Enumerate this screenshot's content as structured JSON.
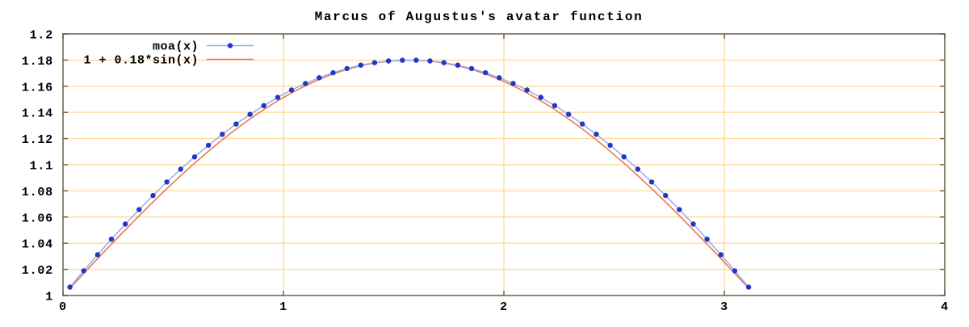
{
  "chart_data": {
    "type": "line",
    "title": "Marcus of Augustus's avatar function",
    "xlabel": "",
    "ylabel": "",
    "xlim": [
      0,
      4
    ],
    "ylim": [
      1,
      1.2
    ],
    "x_ticks": [
      0,
      1,
      2,
      3,
      4
    ],
    "x_tick_labels": [
      "0",
      "1",
      "2",
      "3",
      "4"
    ],
    "y_ticks": [
      1,
      1.02,
      1.04,
      1.06,
      1.08,
      1.1,
      1.12,
      1.14,
      1.16,
      1.18,
      1.2
    ],
    "y_tick_labels": [
      "1",
      "1.02",
      "1.04",
      "1.06",
      "1.08",
      "1.1",
      "1.12",
      "1.14",
      "1.16",
      "1.18",
      "1.2"
    ],
    "grid": true,
    "legend_position": "top-left",
    "x": [
      0.0314,
      0.0942,
      0.1571,
      0.2199,
      0.2827,
      0.3456,
      0.4084,
      0.4712,
      0.5341,
      0.5969,
      0.6597,
      0.7226,
      0.7854,
      0.8482,
      0.9111,
      0.9739,
      1.0367,
      1.0996,
      1.1624,
      1.2252,
      1.2881,
      1.3509,
      1.4137,
      1.4765,
      1.5394,
      1.6022,
      1.665,
      1.7279,
      1.7907,
      1.8535,
      1.9164,
      1.9792,
      2.042,
      2.1049,
      2.1677,
      2.2305,
      2.2934,
      2.3562,
      2.419,
      2.4819,
      2.5447,
      2.6075,
      2.6704,
      2.7332,
      2.796,
      2.8588,
      2.9217,
      2.9845,
      3.0473,
      3.1102
    ],
    "series": [
      {
        "name": "moa(x)",
        "style": "linespoints",
        "color_line": "#97abec",
        "color_point": "#2038c8",
        "y": [
          1.0064,
          1.0189,
          1.0312,
          1.0431,
          1.0546,
          1.0657,
          1.0765,
          1.0868,
          1.0966,
          1.106,
          1.1149,
          1.1233,
          1.1311,
          1.1385,
          1.1452,
          1.1515,
          1.1571,
          1.1621,
          1.1665,
          1.1703,
          1.1735,
          1.1761,
          1.178,
          1.1793,
          1.1799,
          1.1799,
          1.1793,
          1.178,
          1.1761,
          1.1735,
          1.1703,
          1.1665,
          1.1621,
          1.1571,
          1.1515,
          1.1452,
          1.1385,
          1.1311,
          1.1233,
          1.1149,
          1.106,
          1.0966,
          1.0868,
          1.0765,
          1.0657,
          1.0546,
          1.0431,
          1.0312,
          1.0189,
          1.0064
        ]
      },
      {
        "name": "1 + 0.18*sin(x)",
        "style": "line",
        "color_line": "#e6734c",
        "y": [
          1.0057,
          1.0169,
          1.0282,
          1.0393,
          1.0502,
          1.061,
          1.0715,
          1.0817,
          1.0916,
          1.1012,
          1.1103,
          1.119,
          1.1273,
          1.135,
          1.1422,
          1.1489,
          1.1549,
          1.1604,
          1.1652,
          1.1694,
          1.1729,
          1.1757,
          1.1778,
          1.1792,
          1.1799,
          1.1799,
          1.1792,
          1.1778,
          1.1757,
          1.1729,
          1.1694,
          1.1652,
          1.1604,
          1.1549,
          1.1489,
          1.1422,
          1.135,
          1.1273,
          1.119,
          1.1103,
          1.1012,
          1.0916,
          1.0817,
          1.0715,
          1.061,
          1.0502,
          1.0393,
          1.0282,
          1.0169,
          1.0057
        ]
      }
    ]
  },
  "colors": {
    "background": "#ffffff",
    "grid": "#ffdba1",
    "border": "#8f8673",
    "tick": "#6b6355",
    "text": "#000000"
  }
}
